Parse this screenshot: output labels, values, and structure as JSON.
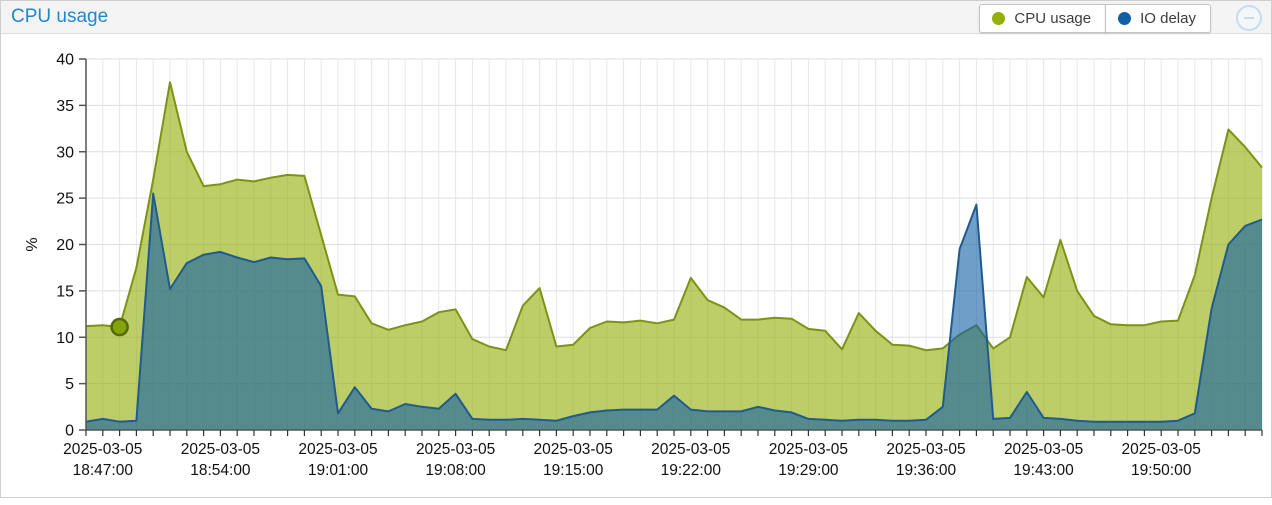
{
  "panel": {
    "title": "CPU usage"
  },
  "legend": {
    "items": [
      {
        "label": "CPU usage",
        "color": "#94ae0a"
      },
      {
        "label": "IO delay",
        "color": "#115fa6"
      }
    ]
  },
  "collapse_button": {
    "icon": "minus-circle"
  },
  "chart_data": {
    "type": "area",
    "title": "CPU usage",
    "xlabel": "",
    "ylabel": "%",
    "ylim": [
      0,
      40
    ],
    "yticks": [
      0,
      5,
      10,
      15,
      20,
      25,
      30,
      35,
      40
    ],
    "grid": true,
    "legend_position": "top-right",
    "x_date": "2025-03-05",
    "x_start_time": "18:46:00",
    "x_interval_seconds": 60,
    "x_point_count": 71,
    "x_tick_labels": [
      {
        "index": 1,
        "date": "2025-03-05",
        "time": "18:47:00"
      },
      {
        "index": 8,
        "date": "2025-03-05",
        "time": "18:54:00"
      },
      {
        "index": 15,
        "date": "2025-03-05",
        "time": "19:01:00"
      },
      {
        "index": 22,
        "date": "2025-03-05",
        "time": "19:08:00"
      },
      {
        "index": 29,
        "date": "2025-03-05",
        "time": "19:15:00"
      },
      {
        "index": 36,
        "date": "2025-03-05",
        "time": "19:22:00"
      },
      {
        "index": 43,
        "date": "2025-03-05",
        "time": "19:29:00"
      },
      {
        "index": 50,
        "date": "2025-03-05",
        "time": "19:36:00"
      },
      {
        "index": 57,
        "date": "2025-03-05",
        "time": "19:43:00"
      },
      {
        "index": 64,
        "date": "2025-03-05",
        "time": "19:50:00"
      }
    ],
    "series": [
      {
        "name": "CPU usage",
        "stroke": "#7c9313",
        "fill": "rgba(148,174,10,0.62)",
        "values": [
          11.2,
          11.3,
          11.1,
          17.5,
          27.0,
          37.5,
          30.0,
          26.3,
          26.5,
          27.0,
          26.8,
          27.2,
          27.5,
          27.4,
          21.0,
          14.6,
          14.4,
          11.5,
          10.8,
          11.3,
          11.7,
          12.7,
          13.0,
          9.8,
          9.0,
          8.6,
          13.4,
          15.3,
          9.0,
          9.2,
          11.0,
          11.7,
          11.6,
          11.8,
          11.5,
          11.9,
          16.4,
          14.0,
          13.2,
          11.9,
          11.9,
          12.1,
          12.0,
          10.9,
          10.7,
          8.7,
          12.6,
          10.7,
          9.2,
          9.1,
          8.6,
          8.8,
          10.3,
          11.3,
          8.8,
          10.0,
          16.5,
          14.3,
          20.5,
          15.0,
          12.3,
          11.4,
          11.3,
          11.3,
          11.7,
          11.8,
          16.7,
          25.0,
          32.4,
          30.5,
          28.3
        ]
      },
      {
        "name": "IO delay",
        "stroke": "#1f5b8e",
        "fill": "rgba(17,95,166,0.6)",
        "values": [
          0.9,
          1.2,
          0.9,
          1.0,
          25.5,
          15.2,
          18.0,
          18.9,
          19.2,
          18.6,
          18.1,
          18.6,
          18.4,
          18.5,
          15.5,
          1.8,
          4.6,
          2.3,
          2.0,
          2.8,
          2.5,
          2.3,
          3.9,
          1.2,
          1.1,
          1.1,
          1.2,
          1.1,
          1.0,
          1.5,
          1.9,
          2.1,
          2.2,
          2.2,
          2.2,
          3.7,
          2.2,
          2.0,
          2.0,
          2.0,
          2.5,
          2.1,
          1.9,
          1.2,
          1.1,
          1.0,
          1.1,
          1.1,
          1.0,
          1.0,
          1.1,
          2.5,
          19.5,
          24.3,
          1.2,
          1.3,
          4.1,
          1.3,
          1.2,
          1.0,
          0.9,
          0.9,
          0.9,
          0.9,
          0.9,
          1.0,
          1.8,
          13.1,
          20.0,
          22.0,
          22.7
        ]
      }
    ],
    "marker": {
      "series": "CPU usage",
      "index": 2,
      "value": 11.1,
      "fill": "#85a40b",
      "stroke": "#55680a"
    },
    "colors": {
      "grid_h": "#dedede",
      "grid_v": "#e7e7e7",
      "axis": "#555555",
      "tick_text": "#111111"
    }
  }
}
